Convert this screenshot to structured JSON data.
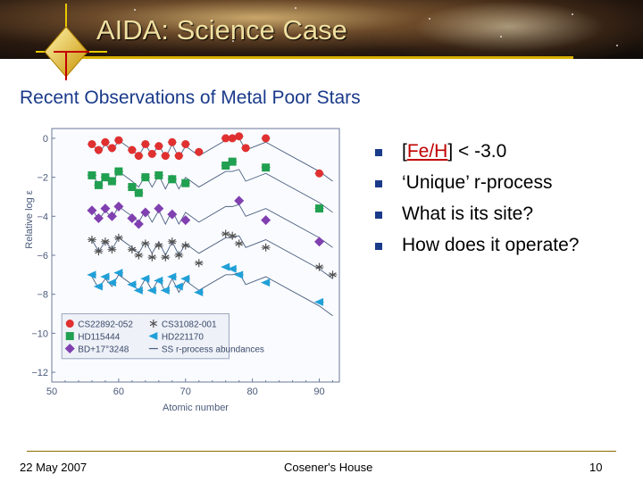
{
  "header": {
    "title": "AIDA: Science Case"
  },
  "subtitle": "Recent Observations of Metal Poor Stars",
  "bullets": {
    "items": [
      {
        "prefix": "[",
        "highlight": "Fe/H",
        "suffix": "] < -3.0"
      },
      {
        "text": "‘Unique’ r-process"
      },
      {
        "text": "What is its site?"
      },
      {
        "text": "How does it operate?"
      }
    ]
  },
  "footer": {
    "date": "22 May 2007",
    "venue": "Cosener's House",
    "page": "10"
  },
  "colors": {
    "accent": "#1a3a8a",
    "banner_line": "#d8b000",
    "title": "#f0e0a0",
    "highlight": "#c00000"
  },
  "chart_data": {
    "type": "scatter",
    "xlabel": "Atomic number",
    "ylabel": "Relative log ε",
    "xlim": [
      50,
      93
    ],
    "ylim": [
      -12.5,
      0.5
    ],
    "x_ticks": [
      "50",
      "60",
      "70",
      "80",
      "90"
    ],
    "y_ticks": [
      "0",
      "−2",
      "−4",
      "−6",
      "−8",
      "−10",
      "−12"
    ],
    "legend": [
      {
        "label": "CS22892-052",
        "color": "#e03030",
        "marker": "circle"
      },
      {
        "label": "HD115444",
        "color": "#20a050",
        "marker": "square"
      },
      {
        "label": "BD+17°3248",
        "color": "#8040b0",
        "marker": "diamond"
      },
      {
        "label": "CS31082-001",
        "color": "#505050",
        "marker": "asterisk"
      },
      {
        "label": "HD221170",
        "color": "#20a0d8",
        "marker": "triangle-left"
      },
      {
        "label": "SS r-process abundances",
        "color": "#4a6080",
        "marker": "line"
      }
    ],
    "series": [
      {
        "name": "CS22892-052",
        "x": [
          56,
          57,
          58,
          59,
          60,
          62,
          63,
          64,
          65,
          66,
          67,
          68,
          69,
          70,
          72,
          76,
          77,
          78,
          79,
          82,
          90
        ],
        "y": [
          -0.3,
          -0.6,
          -0.2,
          -0.5,
          -0.1,
          -0.6,
          -0.9,
          -0.3,
          -0.8,
          -0.4,
          -0.9,
          -0.2,
          -0.9,
          -0.3,
          -0.7,
          0.0,
          0.0,
          0.1,
          -0.5,
          0.0,
          -1.8
        ]
      },
      {
        "name": "HD115444",
        "x": [
          56,
          57,
          58,
          59,
          60,
          62,
          63,
          64,
          66,
          68,
          70,
          76,
          77,
          82,
          90
        ],
        "y": [
          -1.9,
          -2.4,
          -2.0,
          -2.2,
          -1.7,
          -2.5,
          -2.8,
          -2.0,
          -1.9,
          -2.1,
          -2.3,
          -1.4,
          -1.2,
          -1.5,
          -3.6
        ]
      },
      {
        "name": "BD+17°3248",
        "x": [
          56,
          57,
          58,
          59,
          60,
          62,
          63,
          64,
          66,
          68,
          70,
          78,
          82,
          90
        ],
        "y": [
          -3.7,
          -4.1,
          -3.6,
          -4.0,
          -3.5,
          -4.1,
          -4.4,
          -3.8,
          -3.6,
          -3.9,
          -4.2,
          -3.2,
          -4.2,
          -5.3
        ]
      },
      {
        "name": "CS31082-001",
        "x": [
          56,
          57,
          58,
          59,
          60,
          62,
          63,
          64,
          65,
          66,
          67,
          68,
          69,
          70,
          72,
          76,
          77,
          78,
          82,
          90,
          92
        ],
        "y": [
          -5.2,
          -5.8,
          -5.3,
          -5.7,
          -5.1,
          -5.7,
          -6.0,
          -5.4,
          -6.1,
          -5.5,
          -6.1,
          -5.3,
          -6.0,
          -5.5,
          -6.4,
          -4.9,
          -5.0,
          -5.4,
          -5.6,
          -6.6,
          -7.0
        ]
      },
      {
        "name": "HD221170",
        "x": [
          56,
          57,
          58,
          59,
          60,
          62,
          63,
          64,
          65,
          66,
          67,
          68,
          69,
          70,
          72,
          76,
          77,
          78,
          82,
          90
        ],
        "y": [
          -7.0,
          -7.6,
          -7.1,
          -7.4,
          -6.9,
          -7.5,
          -7.8,
          -7.2,
          -7.8,
          -7.3,
          -7.8,
          -7.1,
          -7.6,
          -7.2,
          -7.9,
          -6.6,
          -6.7,
          -7.0,
          -7.4,
          -8.4
        ]
      }
    ],
    "ss_curves": {
      "x": [
        56,
        57,
        58,
        59,
        60,
        62,
        63,
        64,
        65,
        66,
        67,
        68,
        69,
        70,
        72,
        76,
        77,
        78,
        79,
        82,
        90,
        92
      ],
      "offsets": [
        0,
        -1.6,
        -3.4,
        -5.0,
        -6.9
      ],
      "profile": [
        -0.2,
        -0.8,
        -0.3,
        -0.7,
        -0.1,
        -0.6,
        -0.9,
        -0.3,
        -0.9,
        -0.3,
        -1.0,
        -0.3,
        -1.0,
        -0.4,
        -0.9,
        -0.1,
        -0.1,
        0.0,
        -0.6,
        -0.2,
        -1.7,
        -2.2
      ]
    }
  }
}
